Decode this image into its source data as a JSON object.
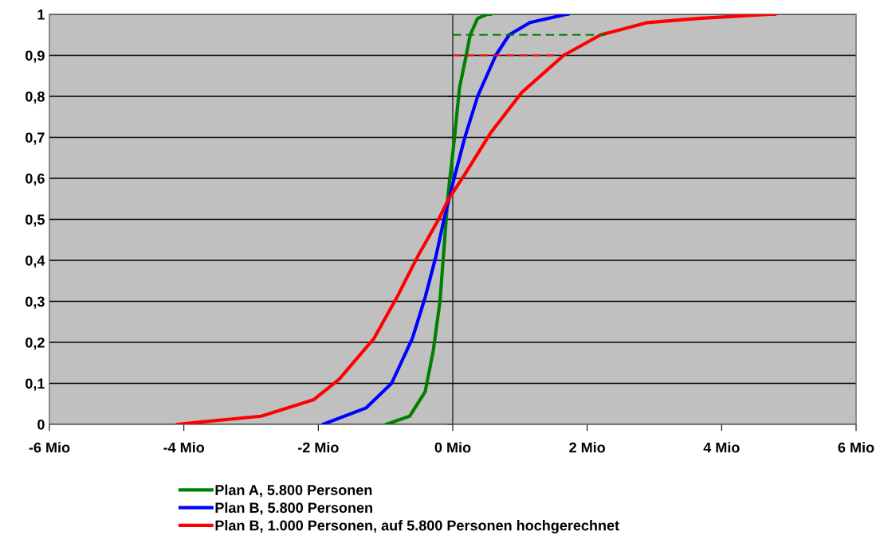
{
  "chart_data": {
    "type": "line",
    "series": [
      {
        "name": "Plan A, 5.800 Personen",
        "color": "#008000",
        "x": [
          -0.99,
          -0.64,
          -0.41,
          -0.29,
          -0.19,
          -0.13,
          -0.07,
          0.02,
          0.1,
          0.2,
          0.26,
          0.37,
          0.51,
          0.57
        ],
        "values": [
          0,
          0.02,
          0.08,
          0.18,
          0.3,
          0.43,
          0.56,
          0.69,
          0.82,
          0.9,
          0.95,
          0.99,
          1.0,
          1.0
        ]
      },
      {
        "name": "Plan B, 5.800 Personen",
        "color": "#0000ff",
        "x": [
          -1.93,
          -1.29,
          -0.91,
          -0.6,
          -0.41,
          -0.25,
          -0.13,
          0.02,
          0.18,
          0.37,
          0.64,
          0.84,
          1.15,
          1.69,
          1.72
        ],
        "values": [
          0,
          0.04,
          0.1,
          0.21,
          0.31,
          0.41,
          0.5,
          0.6,
          0.7,
          0.8,
          0.9,
          0.95,
          0.98,
          1.0,
          1.0
        ]
      },
      {
        "name": "Plan B, 1.000 Personen, auf 5.800 Personen hochgerechnet",
        "color": "#ff0000",
        "x": [
          -4.1,
          -2.85,
          -2.07,
          -1.69,
          -1.17,
          -0.83,
          -0.52,
          -0.21,
          -0.06,
          0.18,
          0.56,
          1.03,
          1.65,
          2.2,
          2.9,
          3.66,
          4.71,
          4.8
        ],
        "values": [
          0,
          0.02,
          0.06,
          0.11,
          0.21,
          0.31,
          0.41,
          0.5,
          0.55,
          0.61,
          0.71,
          0.81,
          0.9,
          0.95,
          0.98,
          0.99,
          1.0,
          1.0
        ]
      },
      {
        "color": "#008000",
        "line_style": "dashed",
        "x": [
          0,
          2.27
        ],
        "values": [
          0.95,
          0.95
        ]
      },
      {
        "color": "#ff0000",
        "line_style": "dashed",
        "x": [
          0,
          1.51
        ],
        "values": [
          0.9,
          0.9
        ]
      }
    ],
    "xlim": [
      -6,
      6
    ],
    "xticks": [
      {
        "value": -6,
        "label": "-6 Mio"
      },
      {
        "value": -4,
        "label": "-4 Mio"
      },
      {
        "value": -2,
        "label": "-2 Mio"
      },
      {
        "value": 0,
        "label": "0 Mio"
      },
      {
        "value": 2,
        "label": "2 Mio"
      },
      {
        "value": 4,
        "label": "4 Mio"
      },
      {
        "value": 6,
        "label": "6 Mio"
      }
    ],
    "ylim": [
      0,
      1
    ],
    "yticks": [
      0,
      {
        "value": 0.1,
        "label": "0,1"
      },
      {
        "value": 0.2,
        "label": "0,2"
      },
      {
        "value": 0.3,
        "label": "0,3"
      },
      {
        "value": 0.4,
        "label": "0,4"
      },
      {
        "value": 0.5,
        "label": "0,5"
      },
      {
        "value": 0.6,
        "label": "0,6"
      },
      {
        "value": 0.7,
        "label": "0,7"
      },
      {
        "value": 0.8,
        "label": "0,8"
      },
      {
        "value": 0.9,
        "label": "0,9"
      },
      1
    ],
    "grid": "y",
    "legend": "bottom",
    "marker": "none",
    "line_style": "solid"
  }
}
